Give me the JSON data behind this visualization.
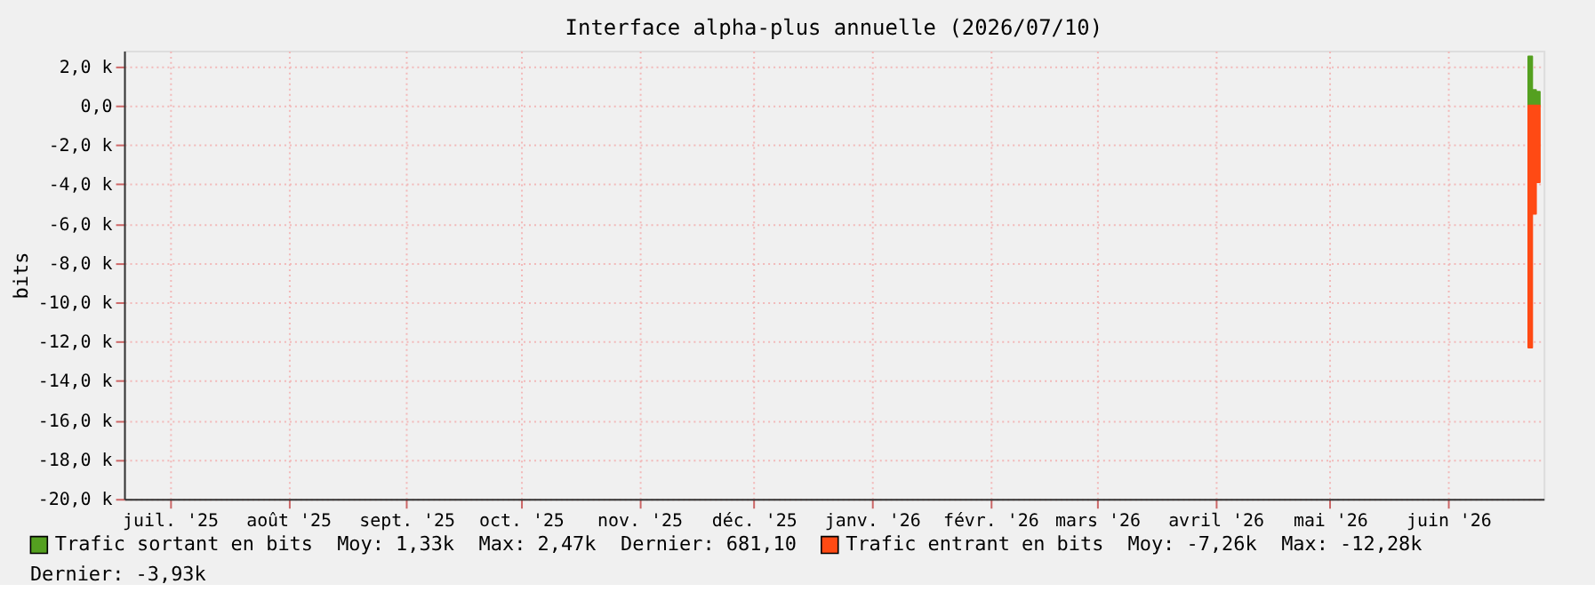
{
  "chart_data": {
    "type": "area",
    "title": "Interface alpha-plus annuelle (2026/07/10)",
    "ylabel": "bits",
    "xlim": [
      "2025-07-04",
      "2026-07-11"
    ],
    "xticks": [
      {
        "value": "2025-07-16",
        "label": "juil. '25"
      },
      {
        "value": "2025-08-16",
        "label": "août '25"
      },
      {
        "value": "2025-09-16",
        "label": "sept. '25"
      },
      {
        "value": "2025-10-16",
        "label": "oct. '25"
      },
      {
        "value": "2025-11-16",
        "label": "nov. '25"
      },
      {
        "value": "2025-12-16",
        "label": "déc. '25"
      },
      {
        "value": "2026-01-16",
        "label": "janv. '26"
      },
      {
        "value": "2026-02-16",
        "label": "févr. '26"
      },
      {
        "value": "2026-03-16",
        "label": "mars '26"
      },
      {
        "value": "2026-04-16",
        "label": "avril '26"
      },
      {
        "value": "2026-05-16",
        "label": "mai '26"
      },
      {
        "value": "2026-06-16",
        "label": "juin '26"
      }
    ],
    "ylim": [
      -20000,
      2800
    ],
    "yticks": [
      {
        "value": 2000,
        "label": "2,0 k"
      },
      {
        "value": 0,
        "label": "0,0"
      },
      {
        "value": -2000,
        "label": "-2,0 k"
      },
      {
        "value": -4000,
        "label": "-4,0 k"
      },
      {
        "value": -6000,
        "label": "-6,0 k"
      },
      {
        "value": -8000,
        "label": "-8,0 k"
      },
      {
        "value": -10000,
        "label": "-10,0 k"
      },
      {
        "value": -12000,
        "label": "-12,0 k"
      },
      {
        "value": -14000,
        "label": "-14,0 k"
      },
      {
        "value": -16000,
        "label": "-16,0 k"
      },
      {
        "value": -18000,
        "label": "-18,0 k"
      },
      {
        "value": -20000,
        "label": "-20,0 k"
      }
    ],
    "grid": true,
    "legend": "bottom",
    "series": [
      {
        "name": "Trafic sortant en bits",
        "color": "#54a020",
        "x": [
          "2026-07-07",
          "2026-07-08",
          "2026-07-08",
          "2026-07-09",
          "2026-07-09",
          "2026-07-10"
        ],
        "values": [
          2500,
          2500,
          800,
          800,
          700,
          700
        ]
      },
      {
        "name": "Trafic entrant en bits",
        "color": "#ff4a14",
        "x": [
          "2026-07-07",
          "2026-07-08",
          "2026-07-08",
          "2026-07-09",
          "2026-07-09",
          "2026-07-10"
        ],
        "values": [
          -12300,
          -12300,
          -5500,
          -5500,
          -3900,
          -3900
        ]
      }
    ],
    "annotations": [
      "Moy: 1,33k",
      "Max: 2,47k",
      "Dernier: 681,10",
      "Moy: -7,26k",
      "Max: -12,28k",
      "Dernier: -3,93k"
    ]
  }
}
